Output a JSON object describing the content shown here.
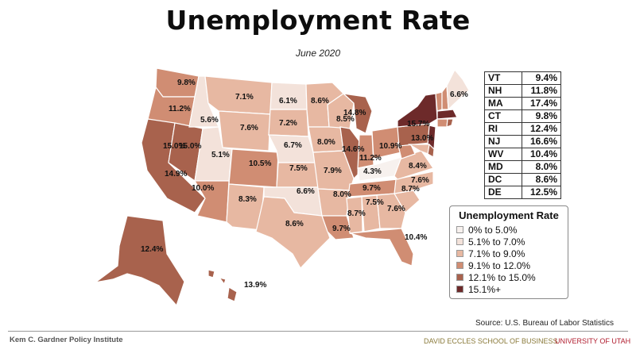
{
  "title": "Unemployment Rate",
  "subtitle": "June 2020",
  "colors": {
    "bin1": "#f7f1ee",
    "bin2": "#f3e2da",
    "bin3": "#e7b8a2",
    "bin4": "#d08d73",
    "bin5": "#a8624d",
    "bin6": "#6d2a2a"
  },
  "map_labels": [
    {
      "state": "WA",
      "text": "9.8%"
    },
    {
      "state": "OR",
      "text": "11.2%"
    },
    {
      "state": "CA",
      "text": "15.0%"
    },
    {
      "state": "CA-south",
      "text": "14.9%"
    },
    {
      "state": "NV",
      "text": "15.0%"
    },
    {
      "state": "ID",
      "text": "5.6%"
    },
    {
      "state": "MT",
      "text": "7.1%"
    },
    {
      "state": "WY",
      "text": "7.6%"
    },
    {
      "state": "UT",
      "text": "5.1%"
    },
    {
      "state": "AZ",
      "text": "10.0%"
    },
    {
      "state": "CO",
      "text": "10.5%"
    },
    {
      "state": "NM",
      "text": "8.3%"
    },
    {
      "state": "ND",
      "text": "6.1%"
    },
    {
      "state": "SD",
      "text": "7.2%"
    },
    {
      "state": "NE",
      "text": "6.7%"
    },
    {
      "state": "KS",
      "text": "7.5%"
    },
    {
      "state": "OK",
      "text": "6.6%"
    },
    {
      "state": "TX",
      "text": "8.6%"
    },
    {
      "state": "MN",
      "text": "8.6%"
    },
    {
      "state": "IA",
      "text": "8.0%"
    },
    {
      "state": "MO",
      "text": "7.9%"
    },
    {
      "state": "AR",
      "text": "8.0%"
    },
    {
      "state": "LA",
      "text": "9.7%"
    },
    {
      "state": "WI",
      "text": "8.5%"
    },
    {
      "state": "IL",
      "text": "14.6%"
    },
    {
      "state": "MI",
      "text": "14.8%"
    },
    {
      "state": "IN",
      "text": "11.2%"
    },
    {
      "state": "OH",
      "text": "10.9%"
    },
    {
      "state": "KY",
      "text": "4.3%"
    },
    {
      "state": "TN",
      "text": "9.7%"
    },
    {
      "state": "MS",
      "text": "8.7%"
    },
    {
      "state": "AL",
      "text": "7.5%"
    },
    {
      "state": "GA",
      "text": "7.6%"
    },
    {
      "state": "FL",
      "text": "10.4%"
    },
    {
      "state": "SC",
      "text": "8.7%"
    },
    {
      "state": "NC",
      "text": "7.6%"
    },
    {
      "state": "VA",
      "text": "8.4%"
    },
    {
      "state": "PA",
      "text": "13.0%"
    },
    {
      "state": "NY",
      "text": "15.7%"
    },
    {
      "state": "ME",
      "text": "6.6%"
    },
    {
      "state": "AK",
      "text": "12.4%"
    },
    {
      "state": "HI",
      "text": "13.9%"
    }
  ],
  "small_states": [
    {
      "abbr": "VT",
      "value": "9.4%"
    },
    {
      "abbr": "NH",
      "value": "11.8%"
    },
    {
      "abbr": "MA",
      "value": "17.4%"
    },
    {
      "abbr": "CT",
      "value": "9.8%"
    },
    {
      "abbr": "RI",
      "value": "12.4%"
    },
    {
      "abbr": "NJ",
      "value": "16.6%"
    },
    {
      "abbr": "WV",
      "value": "10.4%"
    },
    {
      "abbr": "MD",
      "value": "8.0%"
    },
    {
      "abbr": "DC",
      "value": "8.6%"
    },
    {
      "abbr": "DE",
      "value": "12.5%"
    }
  ],
  "legend": {
    "title": "Unemployment Rate",
    "items": [
      {
        "label": "0% to 5.0%",
        "color": "#f7f1ee"
      },
      {
        "label": "5.1% to 7.0%",
        "color": "#f3e2da"
      },
      {
        "label": "7.1% to 9.0%",
        "color": "#e7b8a2"
      },
      {
        "label": "9.1% to 12.0%",
        "color": "#d08d73"
      },
      {
        "label": "12.1% to 15.0%",
        "color": "#a8624d"
      },
      {
        "label": "15.1%+",
        "color": "#6d2a2a"
      }
    ]
  },
  "source": "Source: U.S. Bureau of Labor Statistics",
  "footer": {
    "left": "Kem C. Gardner Policy Institute",
    "middle": "DAVID ECCLES SCHOOL OF BUSINESS",
    "right": "UNIVERSITY OF UTAH"
  }
}
